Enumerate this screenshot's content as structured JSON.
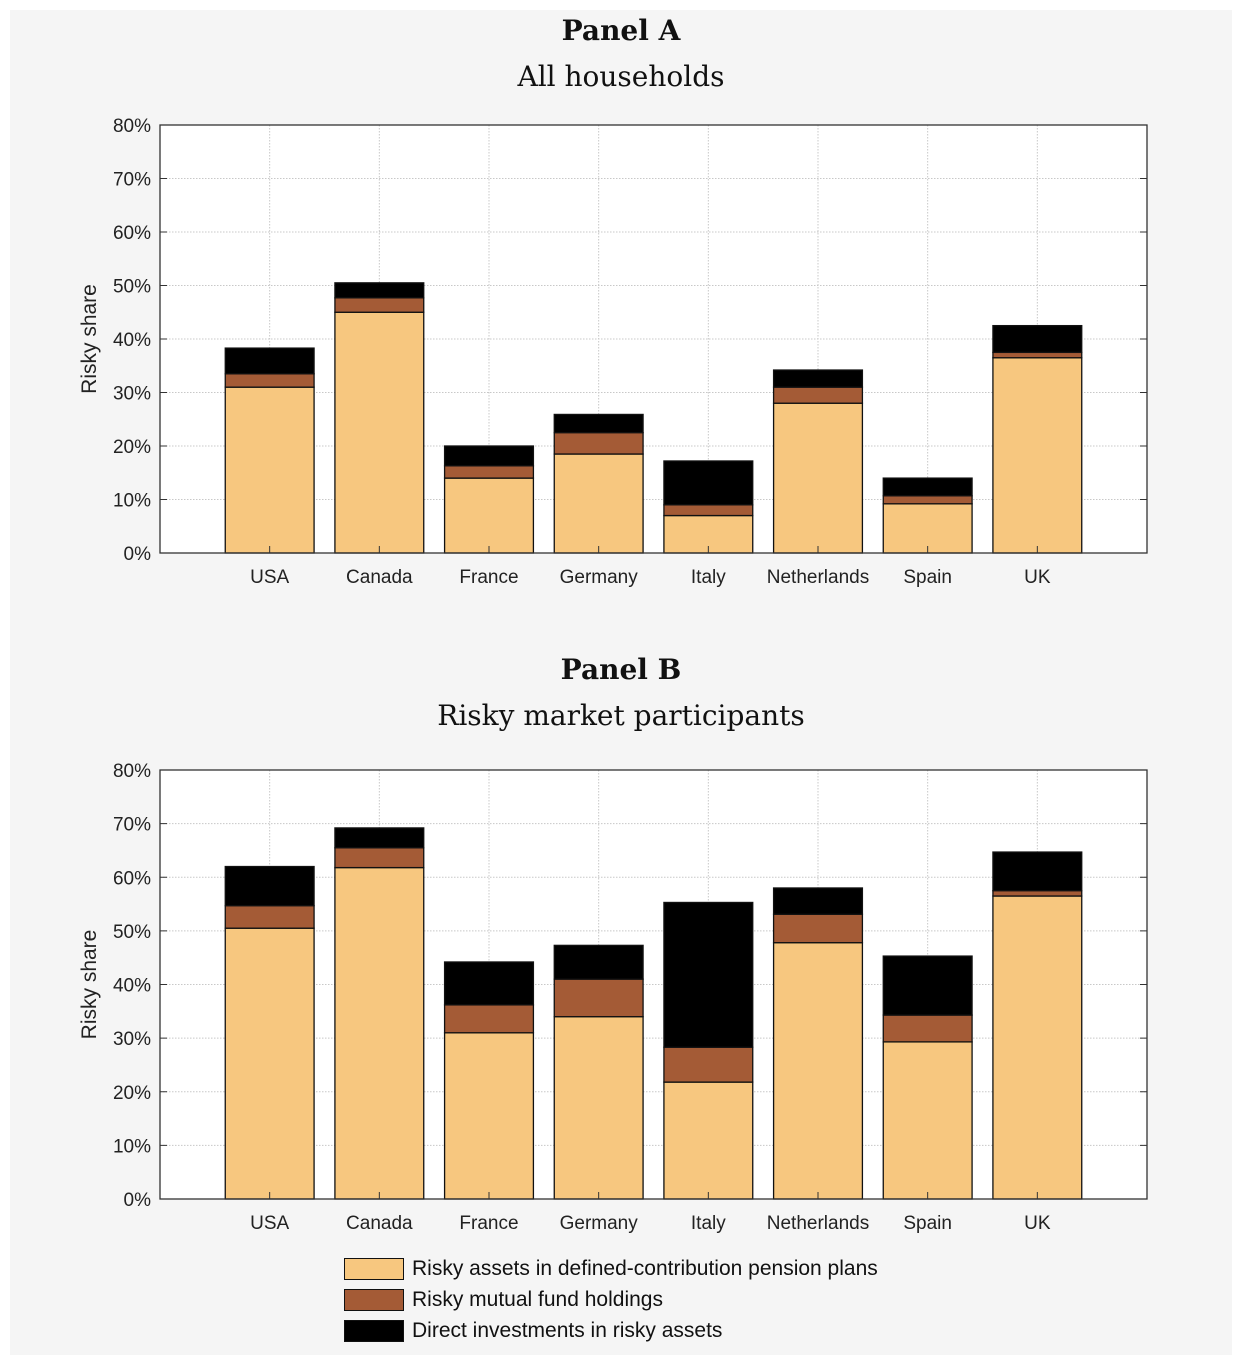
{
  "panels": [
    {
      "title": "Panel A",
      "subtitle": "All households"
    },
    {
      "title": "Panel B",
      "subtitle": "Risky market participants"
    }
  ],
  "legend": {
    "items": [
      {
        "label": "Risky assets in defined-contribution pension plans",
        "color": "#f7c77f"
      },
      {
        "label": "Risky mutual fund holdings",
        "color": "#a45b36"
      },
      {
        "label": "Direct investments in risky assets",
        "color": "#000000"
      }
    ]
  },
  "chart_data": [
    {
      "type": "bar",
      "stacked": true,
      "title": "Panel A",
      "subtitle": "All households",
      "ylabel": "Risky share",
      "xlabel": "",
      "ylim": [
        0,
        80
      ],
      "yticks": [
        "0%",
        "10%",
        "20%",
        "30%",
        "40%",
        "50%",
        "60%",
        "70%",
        "80%"
      ],
      "grid": true,
      "categories": [
        "USA",
        "Canada",
        "France",
        "Germany",
        "Italy",
        "Netherlands",
        "Spain",
        "UK"
      ],
      "series": [
        {
          "name": "Risky assets in defined-contribution pension plans",
          "color": "#f7c77f",
          "values": [
            31,
            45,
            14,
            18.5,
            7,
            28,
            9.2,
            36.5
          ]
        },
        {
          "name": "Risky mutual fund holdings",
          "color": "#a45b36",
          "values": [
            2.5,
            2.7,
            2.3,
            4,
            2,
            3,
            1.5,
            1
          ]
        },
        {
          "name": "Direct investments in risky assets",
          "color": "#000000",
          "values": [
            4.8,
            2.8,
            3.7,
            3.4,
            8.2,
            3.2,
            3.3,
            5
          ]
        }
      ]
    },
    {
      "type": "bar",
      "stacked": true,
      "title": "Panel B",
      "subtitle": "Risky market participants",
      "ylabel": "Risky share",
      "xlabel": "",
      "ylim": [
        0,
        80
      ],
      "yticks": [
        "0%",
        "10%",
        "20%",
        "30%",
        "40%",
        "50%",
        "60%",
        "70%",
        "80%"
      ],
      "grid": true,
      "categories": [
        "USA",
        "Canada",
        "France",
        "Germany",
        "Italy",
        "Netherlands",
        "Spain",
        "UK"
      ],
      "series": [
        {
          "name": "Risky assets in defined-contribution pension plans",
          "color": "#f7c77f",
          "values": [
            50.5,
            61.8,
            31,
            34,
            21.8,
            47.8,
            29.3,
            56.5
          ]
        },
        {
          "name": "Risky mutual fund holdings",
          "color": "#a45b36",
          "values": [
            4.2,
            3.7,
            5.2,
            7,
            6.5,
            5.3,
            5,
            1
          ]
        },
        {
          "name": "Direct investments in risky assets",
          "color": "#000000",
          "values": [
            7.3,
            3.7,
            8,
            6.3,
            27,
            4.9,
            11,
            7.2
          ]
        }
      ]
    }
  ]
}
